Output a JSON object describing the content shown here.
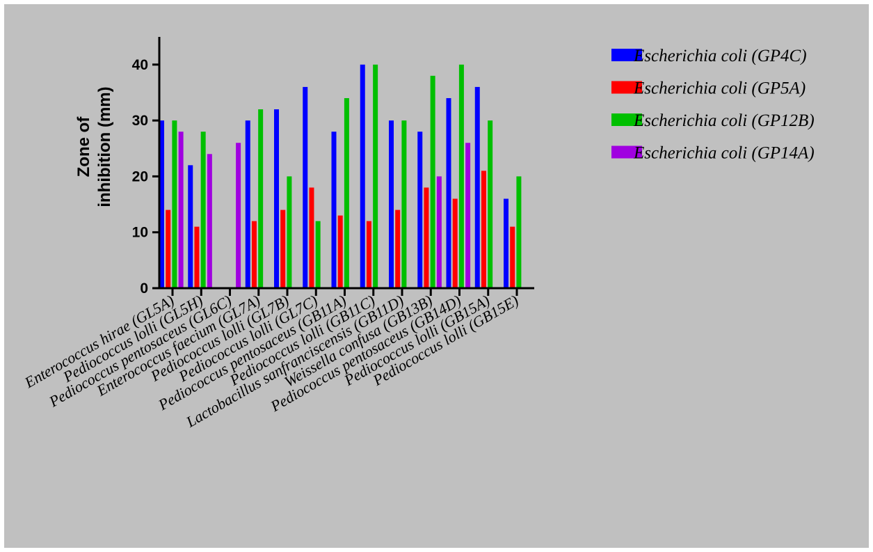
{
  "chart_data": {
    "type": "bar",
    "title": "",
    "xlabel": "",
    "ylabel": [
      "Zone of",
      "inhibition (mm)"
    ],
    "ylim": [
      0,
      45
    ],
    "yticks": [
      0,
      10,
      20,
      30,
      40
    ],
    "grid": false,
    "legend_position": "top-right",
    "categories": [
      "Enterococcus hirae (GL5A)",
      "Pediococcus lolli (GL5H)",
      "Pediococcus pentosaceus (GL6C)",
      "Enterococcus faecium (GL7A)",
      "Pediococcus lolli (GL7B)",
      "Pediococcus lolli (GL7C)",
      "Pediococcus pentosaceus (GB11A)",
      "Pediococcus lolli (GB11C)",
      "Lactobacillus sanfranciscensis (GB11D)",
      "Weissella confusa (GB13B)",
      "Pediococcus pentosaceus (GB14D)",
      "Pediococcus lolli (GB15A)",
      "Pediococcus lolli (GB15E)"
    ],
    "series": [
      {
        "name": "Escherichia coli (GP4C)",
        "color": "#0000ff",
        "values": [
          30,
          22,
          0,
          30,
          32,
          36,
          28,
          40,
          30,
          28,
          34,
          36,
          16
        ]
      },
      {
        "name": "Escherichia coli (GP5A)",
        "color": "#ff0000",
        "values": [
          14,
          11,
          0,
          12,
          14,
          18,
          13,
          12,
          14,
          18,
          16,
          21,
          11
        ]
      },
      {
        "name": "Escherichia coli (GP12B)",
        "color": "#00bf00",
        "values": [
          30,
          28,
          0,
          32,
          20,
          12,
          34,
          40,
          30,
          38,
          40,
          30,
          20
        ]
      },
      {
        "name": "Escherichia coli (GP14A)",
        "color": "#a000e0",
        "values": [
          28,
          24,
          26,
          0,
          0,
          0,
          0,
          0,
          0,
          20,
          26,
          0,
          0
        ]
      }
    ]
  }
}
